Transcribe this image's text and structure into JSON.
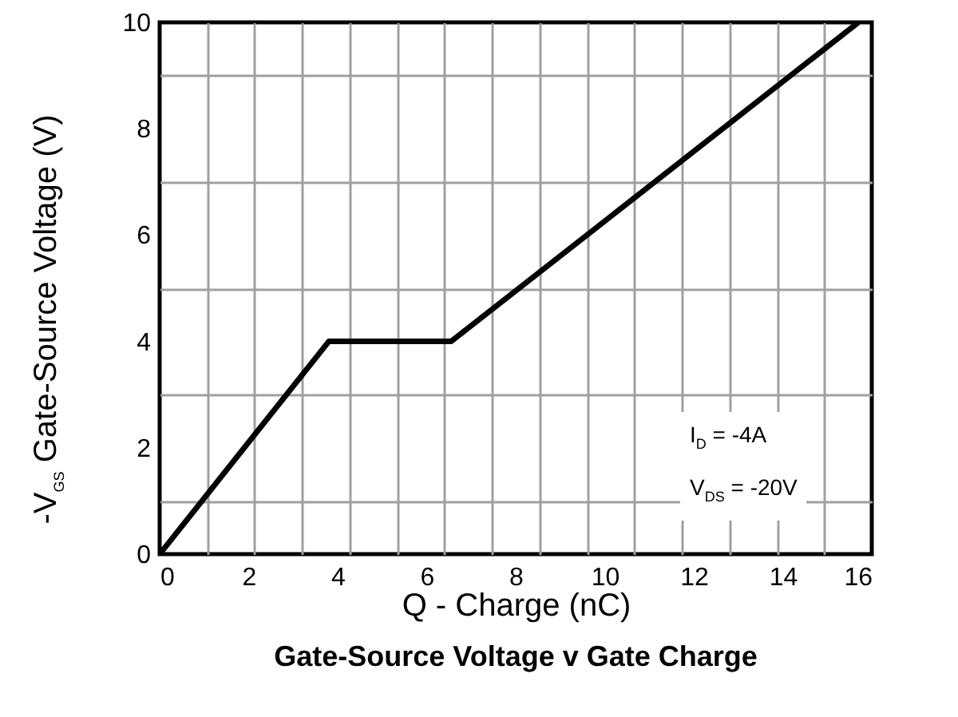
{
  "chart_data": {
    "type": "line",
    "title": "Gate-Source Voltage v Gate Charge",
    "xlabel": "Q - Charge (nC)",
    "ylabel": "-V$_{GS}$  Gate-Source Voltage (V)",
    "x": [
      0,
      3.8,
      6.55,
      15.7
    ],
    "series": [
      {
        "color": "#000000",
        "values": [
          0,
          4,
          4,
          10
        ]
      }
    ],
    "xlim": [
      0,
      16
    ],
    "xticks": [
      0,
      2,
      4,
      6,
      8,
      10,
      12,
      14,
      16,
      {
        "value": 1.07,
        "label": null
      },
      {
        "value": 2.13,
        "label": null
      },
      {
        "value": 3.2,
        "label": null
      },
      {
        "value": 4.27,
        "label": null
      },
      {
        "value": 5.33,
        "label": null
      },
      {
        "value": 6.4,
        "label": null
      },
      {
        "value": 7.47,
        "label": null
      },
      {
        "value": 8.53,
        "label": null
      },
      {
        "value": 9.6,
        "label": null
      },
      {
        "value": 10.67,
        "label": null
      },
      {
        "value": 11.73,
        "label": null
      },
      {
        "value": 12.8,
        "label": null
      },
      {
        "value": 13.87,
        "label": null
      },
      {
        "value": 14.93,
        "label": null
      }
    ],
    "ylim": [
      0,
      10
    ],
    "yticks": [
      0,
      {
        "value": 1,
        "label": null
      },
      2,
      {
        "value": 3,
        "label": null
      },
      4,
      {
        "value": 5,
        "label": null
      },
      6,
      {
        "value": 7,
        "label": null
      },
      8,
      {
        "value": 9,
        "label": null
      },
      10
    ],
    "grid": true,
    "marker": "none",
    "line_style": "solid",
    "annotations": [
      "I$_{D}$ = -4A",
      "V$_{DS}$ = -20V"
    ]
  }
}
